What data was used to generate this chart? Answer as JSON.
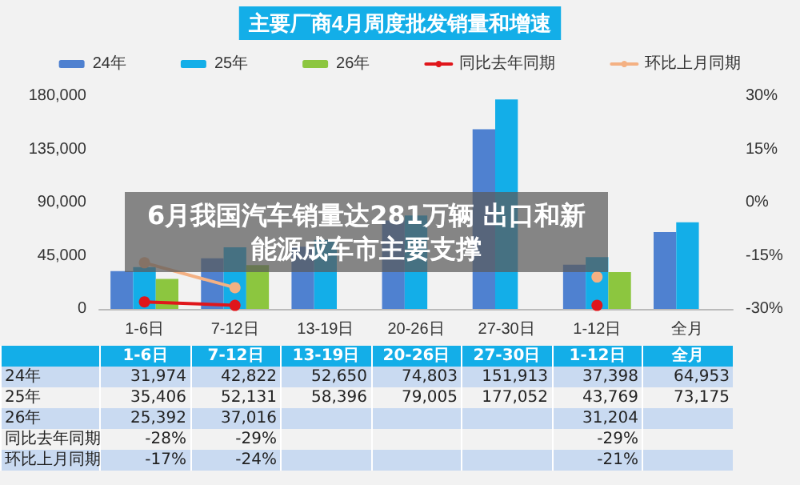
{
  "chart_data": {
    "type": "bar",
    "title": "主要厂商4月周度批发销量和增速",
    "categories": [
      "1-6日",
      "7-12日",
      "13-19日",
      "20-26日",
      "27-30日",
      "1-12日",
      "全月"
    ],
    "series": [
      {
        "name": "24年",
        "color": "#4f81d0",
        "values": [
          31974,
          42822,
          52650,
          74803,
          151913,
          37398,
          64953
        ],
        "value_labels": [
          "31,974",
          "42,822",
          "52,650",
          "74,803",
          "151,913",
          "37,398",
          "64,953"
        ]
      },
      {
        "name": "25年",
        "color": "#13aee8",
        "values": [
          35406,
          52131,
          58396,
          79005,
          177052,
          43769,
          73175
        ],
        "value_labels": [
          "35,406",
          "52,131",
          "58,396",
          "79,005",
          "177,052",
          "43,769",
          "73,175"
        ]
      },
      {
        "name": "26年",
        "color": "#8cc63f",
        "values": [
          25392,
          37016,
          null,
          null,
          null,
          31204,
          null
        ],
        "value_labels": [
          "25,392",
          "37,016",
          null,
          null,
          null,
          "31,204",
          null
        ]
      },
      {
        "name": "同比去年同期",
        "type": "line",
        "axis": "y2",
        "color": "#e0161b",
        "values": [
          -28,
          -29,
          null,
          null,
          null,
          -29,
          null
        ],
        "value_labels": [
          "-28%",
          "-29%",
          null,
          null,
          null,
          "-29%",
          null
        ]
      },
      {
        "name": "环比上月同期",
        "type": "line",
        "axis": "y2",
        "color": "#f4b183",
        "values": [
          -17,
          -24,
          null,
          null,
          null,
          -21,
          null
        ],
        "value_labels": [
          "-17%",
          "-24%",
          null,
          null,
          null,
          "-21%",
          null
        ]
      }
    ],
    "ylim": [
      0,
      180000
    ],
    "yticks": [
      {
        "value": 0,
        "label": "0"
      },
      {
        "value": 45000,
        "label": "45,000"
      },
      {
        "value": 90000,
        "label": "90,000"
      },
      {
        "value": 135000,
        "label": "135,000"
      },
      {
        "value": 180000,
        "label": "180,000"
      }
    ],
    "y2lim": [
      -30,
      30
    ],
    "y2ticks": [
      {
        "value": -30,
        "label": "-30%"
      },
      {
        "value": -15,
        "label": "-15%"
      },
      {
        "value": 0,
        "label": "0%"
      },
      {
        "value": 15,
        "label": "15%"
      },
      {
        "value": 30,
        "label": "30%"
      }
    ],
    "legend": "top",
    "marker": "circle",
    "grid": false,
    "annotations": [
      "6月我国汽车销量达281万辆 出口和新能源成车市主要支撑"
    ]
  }
}
